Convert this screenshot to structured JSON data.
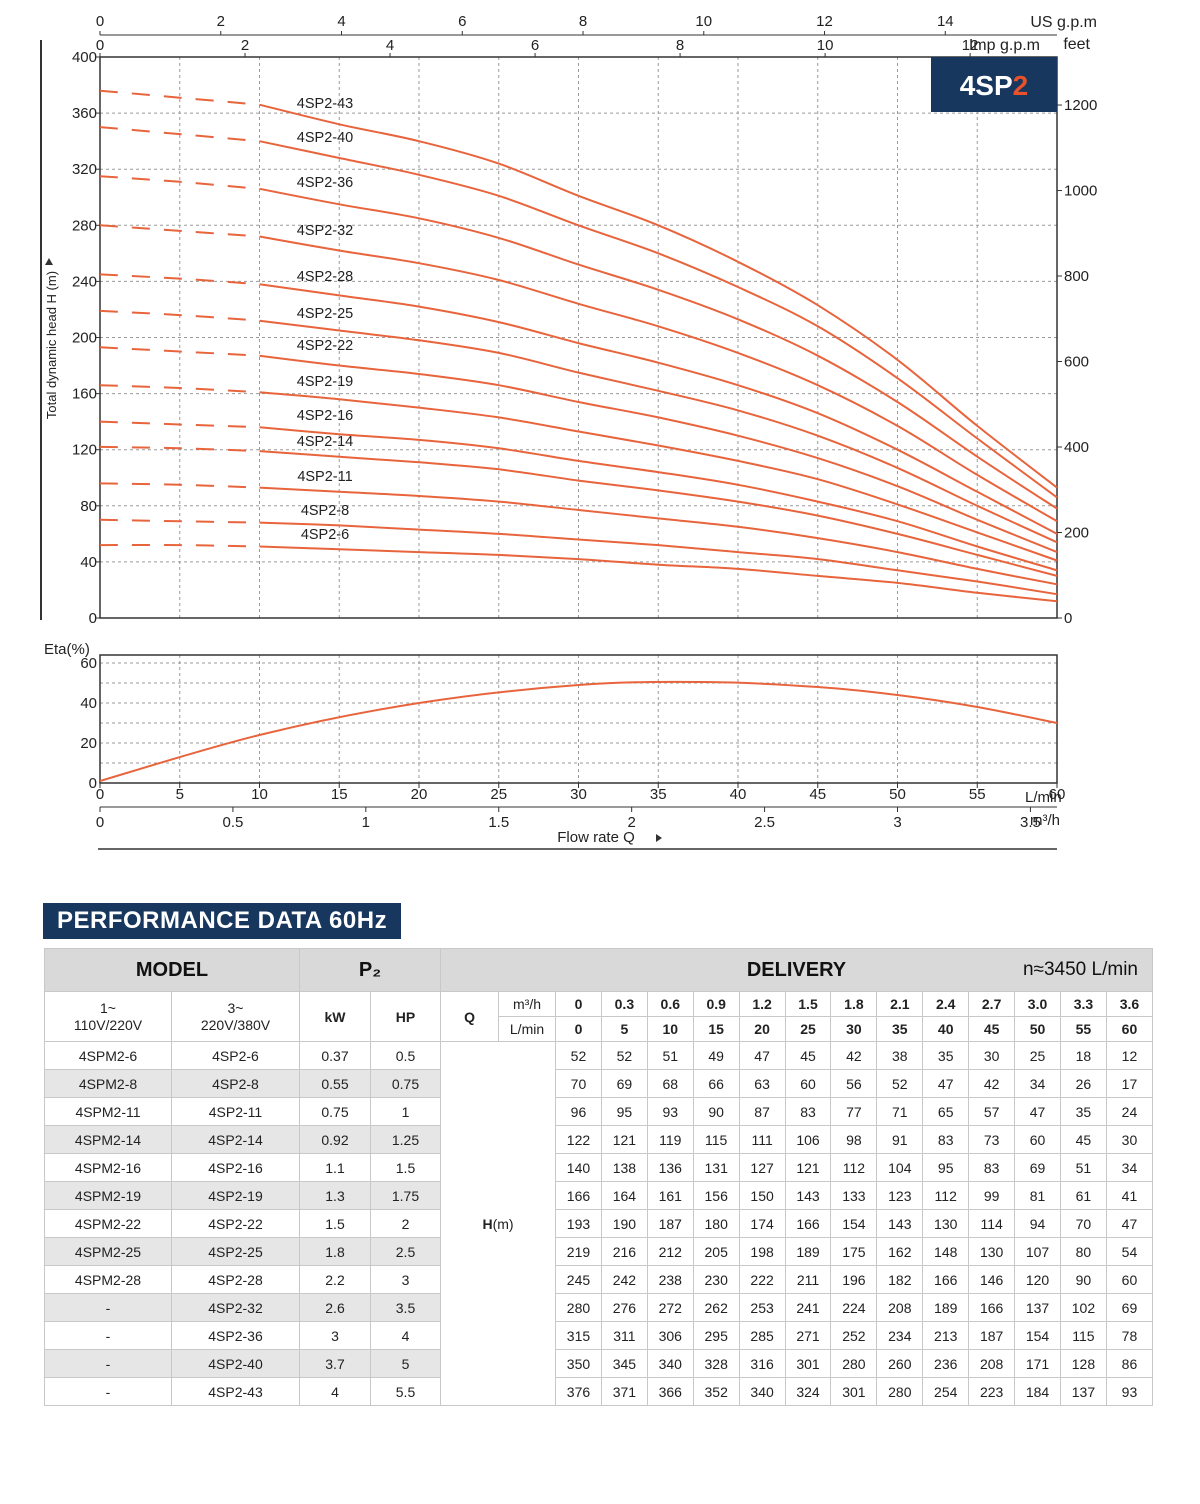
{
  "chart_data": [
    {
      "type": "line",
      "badge": {
        "prefix": "4SP",
        "accent": "2",
        "bg": "#17375e",
        "accent_color": "#e8512a"
      },
      "ylabel": "Total dynamic head H (m)",
      "ylim": [
        0,
        400
      ],
      "yticks": [
        "0",
        "40",
        "80",
        "120",
        "160",
        "200",
        "240",
        "280",
        "320",
        "360",
        "400"
      ],
      "right_axis": {
        "ticks": [
          "0",
          "200",
          "400",
          "600",
          "800",
          "1000",
          "1200"
        ],
        "unit": "feet"
      },
      "top_axis_us": {
        "label": "US g.p.m",
        "ticks": [
          "0",
          "2",
          "4",
          "6",
          "8",
          "10",
          "12",
          "14"
        ]
      },
      "top_axis_imp": {
        "label": "Imp g.p.m",
        "ticks": [
          "0",
          "2",
          "4",
          "6",
          "8",
          "10",
          "12"
        ]
      },
      "xlim": [
        0,
        60
      ],
      "x": [
        0,
        5,
        10,
        15,
        20,
        25,
        30,
        35,
        40,
        45,
        50,
        55,
        60
      ],
      "dashed_until_x": 10,
      "line_color": "#e8643c",
      "grid": true,
      "series": [
        {
          "name": "4SP2-43",
          "values": [
            376,
            371,
            366,
            352,
            340,
            324,
            301,
            280,
            254,
            223,
            184,
            137,
            93
          ]
        },
        {
          "name": "4SP2-40",
          "values": [
            350,
            345,
            340,
            328,
            316,
            301,
            280,
            260,
            236,
            208,
            171,
            128,
            86
          ]
        },
        {
          "name": "4SP2-36",
          "values": [
            315,
            311,
            306,
            295,
            285,
            271,
            252,
            234,
            213,
            187,
            154,
            115,
            78
          ]
        },
        {
          "name": "4SP2-32",
          "values": [
            280,
            276,
            272,
            262,
            253,
            241,
            224,
            208,
            189,
            166,
            137,
            102,
            69
          ]
        },
        {
          "name": "4SP2-28",
          "values": [
            245,
            242,
            238,
            230,
            222,
            211,
            196,
            182,
            166,
            146,
            120,
            90,
            60
          ]
        },
        {
          "name": "4SP2-25",
          "values": [
            219,
            216,
            212,
            205,
            198,
            189,
            175,
            162,
            148,
            130,
            107,
            80,
            54
          ]
        },
        {
          "name": "4SP2-22",
          "values": [
            193,
            190,
            187,
            180,
            174,
            166,
            154,
            143,
            130,
            114,
            94,
            70,
            47
          ]
        },
        {
          "name": "4SP2-19",
          "values": [
            166,
            164,
            161,
            156,
            150,
            143,
            133,
            123,
            112,
            99,
            81,
            61,
            41
          ]
        },
        {
          "name": "4SP2-16",
          "values": [
            140,
            138,
            136,
            131,
            127,
            121,
            112,
            104,
            95,
            83,
            69,
            51,
            34
          ]
        },
        {
          "name": "4SP2-14",
          "values": [
            122,
            121,
            119,
            115,
            111,
            106,
            98,
            91,
            83,
            73,
            60,
            45,
            30
          ]
        },
        {
          "name": "4SP2-11",
          "values": [
            96,
            95,
            93,
            90,
            87,
            83,
            77,
            71,
            65,
            57,
            47,
            35,
            24
          ]
        },
        {
          "name": "4SP2-8",
          "values": [
            70,
            69,
            68,
            66,
            63,
            60,
            56,
            52,
            47,
            42,
            34,
            26,
            17
          ]
        },
        {
          "name": "4SP2-6",
          "values": [
            52,
            52,
            51,
            49,
            47,
            45,
            42,
            38,
            35,
            30,
            25,
            18,
            12
          ]
        }
      ]
    },
    {
      "type": "line",
      "ylabel": "Eta(%)",
      "ylim": [
        0,
        60
      ],
      "yticks": [
        "0",
        "20",
        "40",
        "60"
      ],
      "xlim": [
        0,
        60
      ],
      "x_unit": "L/min",
      "xticks": [
        "0",
        "5",
        "10",
        "15",
        "20",
        "25",
        "30",
        "35",
        "40",
        "45",
        "50",
        "55",
        "60"
      ],
      "m3h_axis": {
        "unit": "m³/h",
        "ticks": [
          "0",
          "0.5",
          "1",
          "1.5",
          "2",
          "2.5",
          "3",
          "3.5"
        ]
      },
      "xlabel": "Flow rate   Q",
      "grid": true,
      "series": [
        {
          "x": [
            0,
            10,
            20,
            30,
            38,
            45,
            50,
            55,
            60
          ],
          "values": [
            1,
            24,
            40,
            49,
            50.5,
            48,
            44,
            38,
            30
          ]
        }
      ]
    }
  ],
  "table": {
    "title": "PERFORMANCE DATA 60Hz",
    "header": {
      "model": "MODEL",
      "p2": "P₂",
      "delivery": "DELIVERY",
      "speed": "n≈3450 L/min",
      "single_phase": "1~",
      "single_phase_v": "110V/220V",
      "three_phase": "3~",
      "three_phase_v": "220V/380V",
      "kw": "kW",
      "hp": "HP",
      "q": "Q",
      "unit_m3h": "m³/h",
      "unit_lmin": "L/min",
      "h_label": "H",
      "h_unit": "(m)"
    },
    "q_m3h": [
      "0",
      "0.3",
      "0.6",
      "0.9",
      "1.2",
      "1.5",
      "1.8",
      "2.1",
      "2.4",
      "2.7",
      "3.0",
      "3.3",
      "3.6"
    ],
    "q_lmin": [
      "0",
      "5",
      "10",
      "15",
      "20",
      "25",
      "30",
      "35",
      "40",
      "45",
      "50",
      "55",
      "60"
    ],
    "rows": [
      {
        "single": "4SPM2-6",
        "three": "4SP2-6",
        "kw": "0.37",
        "hp": "0.5",
        "h": [
          "52",
          "52",
          "51",
          "49",
          "47",
          "45",
          "42",
          "38",
          "35",
          "30",
          "25",
          "18",
          "12"
        ]
      },
      {
        "single": "4SPM2-8",
        "three": "4SP2-8",
        "kw": "0.55",
        "hp": "0.75",
        "h": [
          "70",
          "69",
          "68",
          "66",
          "63",
          "60",
          "56",
          "52",
          "47",
          "42",
          "34",
          "26",
          "17"
        ]
      },
      {
        "single": "4SPM2-11",
        "three": "4SP2-11",
        "kw": "0.75",
        "hp": "1",
        "h": [
          "96",
          "95",
          "93",
          "90",
          "87",
          "83",
          "77",
          "71",
          "65",
          "57",
          "47",
          "35",
          "24"
        ]
      },
      {
        "single": "4SPM2-14",
        "three": "4SP2-14",
        "kw": "0.92",
        "hp": "1.25",
        "h": [
          "122",
          "121",
          "119",
          "115",
          "111",
          "106",
          "98",
          "91",
          "83",
          "73",
          "60",
          "45",
          "30"
        ]
      },
      {
        "single": "4SPM2-16",
        "three": "4SP2-16",
        "kw": "1.1",
        "hp": "1.5",
        "h": [
          "140",
          "138",
          "136",
          "131",
          "127",
          "121",
          "112",
          "104",
          "95",
          "83",
          "69",
          "51",
          "34"
        ]
      },
      {
        "single": "4SPM2-19",
        "three": "4SP2-19",
        "kw": "1.3",
        "hp": "1.75",
        "h": [
          "166",
          "164",
          "161",
          "156",
          "150",
          "143",
          "133",
          "123",
          "112",
          "99",
          "81",
          "61",
          "41"
        ]
      },
      {
        "single": "4SPM2-22",
        "three": "4SP2-22",
        "kw": "1.5",
        "hp": "2",
        "h": [
          "193",
          "190",
          "187",
          "180",
          "174",
          "166",
          "154",
          "143",
          "130",
          "114",
          "94",
          "70",
          "47"
        ]
      },
      {
        "single": "4SPM2-25",
        "three": "4SP2-25",
        "kw": "1.8",
        "hp": "2.5",
        "h": [
          "219",
          "216",
          "212",
          "205",
          "198",
          "189",
          "175",
          "162",
          "148",
          "130",
          "107",
          "80",
          "54"
        ]
      },
      {
        "single": "4SPM2-28",
        "three": "4SP2-28",
        "kw": "2.2",
        "hp": "3",
        "h": [
          "245",
          "242",
          "238",
          "230",
          "222",
          "211",
          "196",
          "182",
          "166",
          "146",
          "120",
          "90",
          "60"
        ]
      },
      {
        "single": "-",
        "three": "4SP2-32",
        "kw": "2.6",
        "hp": "3.5",
        "h": [
          "280",
          "276",
          "272",
          "262",
          "253",
          "241",
          "224",
          "208",
          "189",
          "166",
          "137",
          "102",
          "69"
        ]
      },
      {
        "single": "-",
        "three": "4SP2-36",
        "kw": "3",
        "hp": "4",
        "h": [
          "315",
          "311",
          "306",
          "295",
          "285",
          "271",
          "252",
          "234",
          "213",
          "187",
          "154",
          "115",
          "78"
        ]
      },
      {
        "single": "-",
        "three": "4SP2-40",
        "kw": "3.7",
        "hp": "5",
        "h": [
          "350",
          "345",
          "340",
          "328",
          "316",
          "301",
          "280",
          "260",
          "236",
          "208",
          "171",
          "128",
          "86"
        ]
      },
      {
        "single": "-",
        "three": "4SP2-43",
        "kw": "4",
        "hp": "5.5",
        "h": [
          "376",
          "371",
          "366",
          "352",
          "340",
          "324",
          "301",
          "280",
          "254",
          "223",
          "184",
          "137",
          "93"
        ]
      }
    ]
  }
}
